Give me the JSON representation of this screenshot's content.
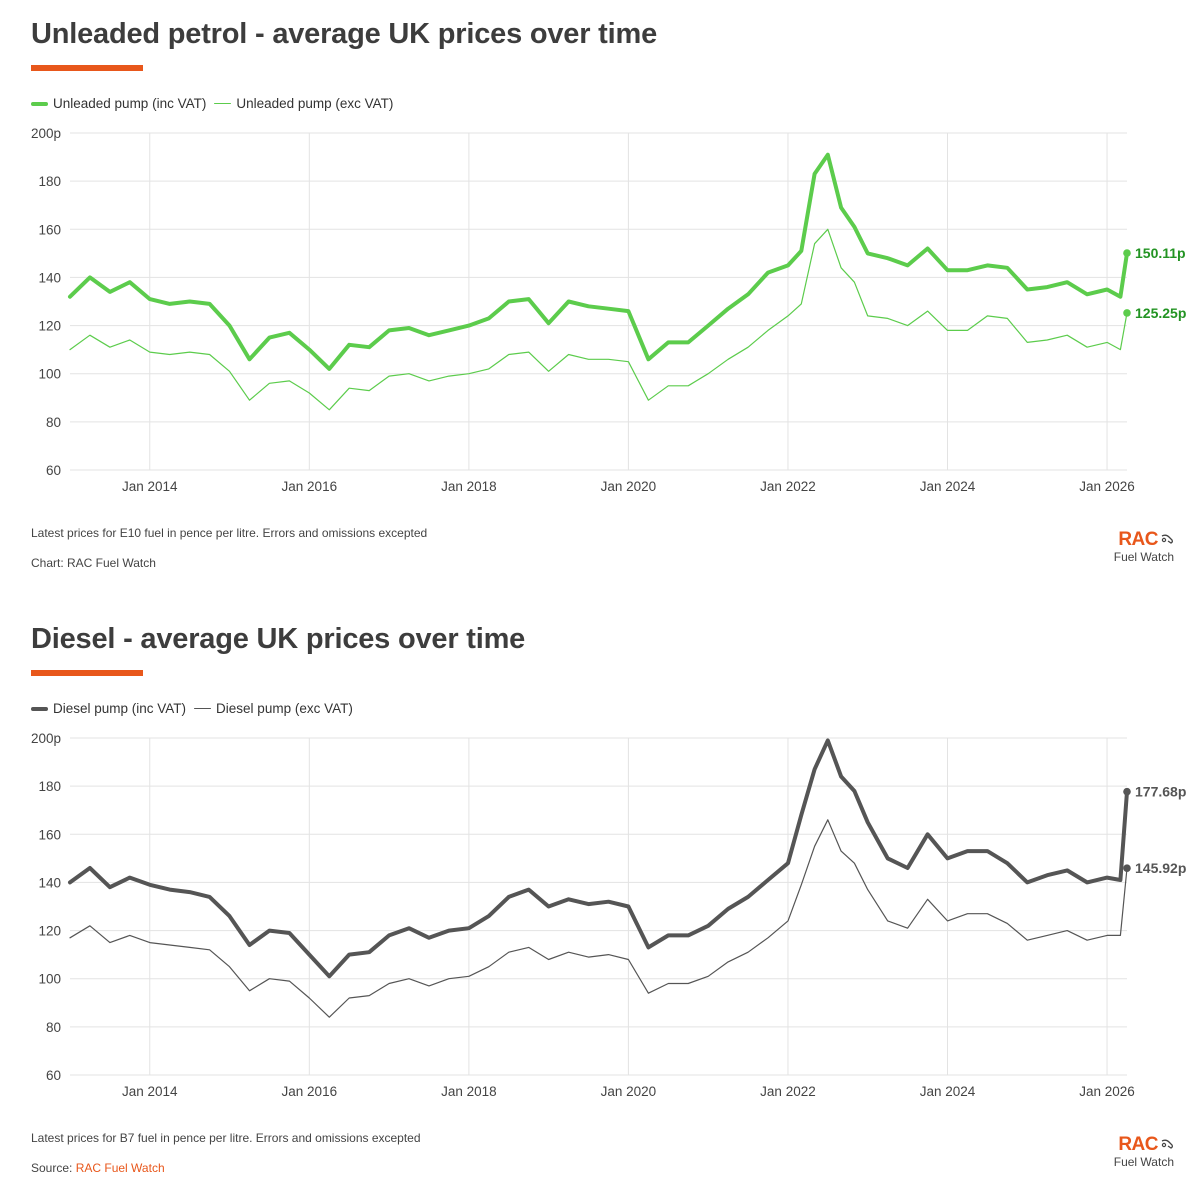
{
  "chart_data": [
    {
      "type": "line",
      "title": "Unleaded petrol - average UK prices over time",
      "ylim": [
        60,
        200
      ],
      "x_range": [
        "2013-01",
        "2026-04"
      ],
      "y_ticks": [
        "200p",
        "180",
        "160",
        "140",
        "120",
        "100",
        "80",
        "60"
      ],
      "y_tick_values": [
        200,
        180,
        160,
        140,
        120,
        100,
        80,
        60
      ],
      "x_ticks": [
        "Jan 2014",
        "Jan 2016",
        "Jan 2018",
        "Jan 2020",
        "Jan 2022",
        "Jan 2024",
        "Jan 2026"
      ],
      "x_tick_values": [
        "2014-01",
        "2016-01",
        "2018-01",
        "2020-01",
        "2022-01",
        "2024-01",
        "2026-01"
      ],
      "grid": "vertical and horizontal",
      "legend_position": "top-left",
      "footnote": "Latest prices for E10 fuel in pence per litre. Errors and omissions excepted",
      "source_label": "Chart: RAC Fuel Watch",
      "source_link": "",
      "series": [
        {
          "name": "Unleaded pump (inc VAT)",
          "color": "#5ccc4c",
          "label_color": "#229322",
          "end_label": "150.11p",
          "x": [
            "2013-01",
            "2013-04",
            "2013-07",
            "2013-10",
            "2014-01",
            "2014-04",
            "2014-07",
            "2014-10",
            "2015-01",
            "2015-04",
            "2015-07",
            "2015-10",
            "2016-01",
            "2016-04",
            "2016-07",
            "2016-10",
            "2017-01",
            "2017-04",
            "2017-07",
            "2017-10",
            "2018-01",
            "2018-04",
            "2018-07",
            "2018-10",
            "2019-01",
            "2019-04",
            "2019-07",
            "2019-10",
            "2020-01",
            "2020-04",
            "2020-07",
            "2020-10",
            "2021-01",
            "2021-04",
            "2021-07",
            "2021-10",
            "2022-01",
            "2022-03",
            "2022-05",
            "2022-07",
            "2022-09",
            "2022-11",
            "2023-01",
            "2023-04",
            "2023-07",
            "2023-10",
            "2024-01",
            "2024-04",
            "2024-07",
            "2024-10",
            "2025-01",
            "2025-04",
            "2025-07",
            "2025-10",
            "2026-01",
            "2026-03",
            "2026-04"
          ],
          "values": [
            132,
            140,
            134,
            138,
            131,
            129,
            130,
            129,
            120,
            106,
            115,
            117,
            110,
            102,
            112,
            111,
            118,
            119,
            116,
            118,
            120,
            123,
            130,
            131,
            121,
            130,
            128,
            127,
            126,
            106,
            113,
            113,
            120,
            127,
            133,
            142,
            145,
            151,
            183,
            191,
            169,
            161,
            150,
            148,
            145,
            152,
            143,
            143,
            145,
            144,
            135,
            136,
            138,
            133,
            135,
            132,
            150.11
          ]
        },
        {
          "name": "Unleaded pump (exc VAT)",
          "color": "#5ccc4c",
          "label_color": "#229322",
          "end_label": "125.25p",
          "x": [
            "2013-01",
            "2013-04",
            "2013-07",
            "2013-10",
            "2014-01",
            "2014-04",
            "2014-07",
            "2014-10",
            "2015-01",
            "2015-04",
            "2015-07",
            "2015-10",
            "2016-01",
            "2016-04",
            "2016-07",
            "2016-10",
            "2017-01",
            "2017-04",
            "2017-07",
            "2017-10",
            "2018-01",
            "2018-04",
            "2018-07",
            "2018-10",
            "2019-01",
            "2019-04",
            "2019-07",
            "2019-10",
            "2020-01",
            "2020-04",
            "2020-07",
            "2020-10",
            "2021-01",
            "2021-04",
            "2021-07",
            "2021-10",
            "2022-01",
            "2022-03",
            "2022-05",
            "2022-07",
            "2022-09",
            "2022-11",
            "2023-01",
            "2023-04",
            "2023-07",
            "2023-10",
            "2024-01",
            "2024-04",
            "2024-07",
            "2024-10",
            "2025-01",
            "2025-04",
            "2025-07",
            "2025-10",
            "2026-01",
            "2026-03",
            "2026-04"
          ],
          "values": [
            110,
            116,
            111,
            114,
            109,
            108,
            109,
            108,
            101,
            89,
            96,
            97,
            92,
            85,
            94,
            93,
            99,
            100,
            97,
            99,
            100,
            102,
            108,
            109,
            101,
            108,
            106,
            106,
            105,
            89,
            95,
            95,
            100,
            106,
            111,
            118,
            124,
            129,
            154,
            160,
            144,
            138,
            124,
            123,
            120,
            126,
            118,
            118,
            124,
            123,
            113,
            114,
            116,
            111,
            113,
            110,
            125.25
          ]
        }
      ]
    },
    {
      "type": "line",
      "title": "Diesel - average UK prices over time",
      "ylim": [
        60,
        200
      ],
      "x_range": [
        "2013-01",
        "2026-04"
      ],
      "y_ticks": [
        "200p",
        "180",
        "160",
        "140",
        "120",
        "100",
        "80",
        "60"
      ],
      "y_tick_values": [
        200,
        180,
        160,
        140,
        120,
        100,
        80,
        60
      ],
      "x_ticks": [
        "Jan 2014",
        "Jan 2016",
        "Jan 2018",
        "Jan 2020",
        "Jan 2022",
        "Jan 2024",
        "Jan 2026"
      ],
      "x_tick_values": [
        "2014-01",
        "2016-01",
        "2018-01",
        "2020-01",
        "2022-01",
        "2024-01",
        "2026-01"
      ],
      "grid": "vertical and horizontal",
      "legend_position": "top-left",
      "footnote": "Latest prices for B7 fuel in pence per litre. Errors and omissions excepted",
      "source_label": "Source: ",
      "source_link": "RAC Fuel Watch",
      "series": [
        {
          "name": "Diesel pump (inc VAT)",
          "color": "#555555",
          "label_color": "#555555",
          "end_label": "177.68p",
          "x": [
            "2013-01",
            "2013-04",
            "2013-07",
            "2013-10",
            "2014-01",
            "2014-04",
            "2014-07",
            "2014-10",
            "2015-01",
            "2015-04",
            "2015-07",
            "2015-10",
            "2016-01",
            "2016-04",
            "2016-07",
            "2016-10",
            "2017-01",
            "2017-04",
            "2017-07",
            "2017-10",
            "2018-01",
            "2018-04",
            "2018-07",
            "2018-10",
            "2019-01",
            "2019-04",
            "2019-07",
            "2019-10",
            "2020-01",
            "2020-04",
            "2020-07",
            "2020-10",
            "2021-01",
            "2021-04",
            "2021-07",
            "2021-10",
            "2022-01",
            "2022-03",
            "2022-05",
            "2022-07",
            "2022-09",
            "2022-11",
            "2023-01",
            "2023-04",
            "2023-07",
            "2023-10",
            "2024-01",
            "2024-04",
            "2024-07",
            "2024-10",
            "2025-01",
            "2025-04",
            "2025-07",
            "2025-10",
            "2026-01",
            "2026-03",
            "2026-04"
          ],
          "values": [
            140,
            146,
            138,
            142,
            139,
            137,
            136,
            134,
            126,
            114,
            120,
            119,
            110,
            101,
            110,
            111,
            118,
            121,
            117,
            120,
            121,
            126,
            134,
            137,
            130,
            133,
            131,
            132,
            130,
            113,
            118,
            118,
            122,
            129,
            134,
            141,
            148,
            168,
            187,
            199,
            184,
            178,
            165,
            150,
            146,
            160,
            150,
            153,
            153,
            148,
            140,
            143,
            145,
            140,
            142,
            141,
            177.68
          ]
        },
        {
          "name": "Diesel pump (exc VAT)",
          "color": "#555555",
          "label_color": "#555555",
          "end_label": "145.92p",
          "x": [
            "2013-01",
            "2013-04",
            "2013-07",
            "2013-10",
            "2014-01",
            "2014-04",
            "2014-07",
            "2014-10",
            "2015-01",
            "2015-04",
            "2015-07",
            "2015-10",
            "2016-01",
            "2016-04",
            "2016-07",
            "2016-10",
            "2017-01",
            "2017-04",
            "2017-07",
            "2017-10",
            "2018-01",
            "2018-04",
            "2018-07",
            "2018-10",
            "2019-01",
            "2019-04",
            "2019-07",
            "2019-10",
            "2020-01",
            "2020-04",
            "2020-07",
            "2020-10",
            "2021-01",
            "2021-04",
            "2021-07",
            "2021-10",
            "2022-01",
            "2022-03",
            "2022-05",
            "2022-07",
            "2022-09",
            "2022-11",
            "2023-01",
            "2023-04",
            "2023-07",
            "2023-10",
            "2024-01",
            "2024-04",
            "2024-07",
            "2024-10",
            "2025-01",
            "2025-04",
            "2025-07",
            "2025-10",
            "2026-01",
            "2026-03",
            "2026-04"
          ],
          "values": [
            117,
            122,
            115,
            118,
            115,
            114,
            113,
            112,
            105,
            95,
            100,
            99,
            92,
            84,
            92,
            93,
            98,
            100,
            97,
            100,
            101,
            105,
            111,
            113,
            108,
            111,
            109,
            110,
            108,
            94,
            98,
            98,
            101,
            107,
            111,
            117,
            124,
            139,
            155,
            166,
            153,
            148,
            137,
            124,
            121,
            133,
            124,
            127,
            127,
            123,
            116,
            118,
            120,
            116,
            118,
            118,
            145.92
          ]
        }
      ]
    }
  ],
  "logo": {
    "brand": "RAC",
    "product": "Fuel Watch",
    "icon": "fuel-pump-icon",
    "color": "#e8571b"
  },
  "colors": {
    "accent": "#e8571b",
    "grid": "#e3e3e3"
  }
}
